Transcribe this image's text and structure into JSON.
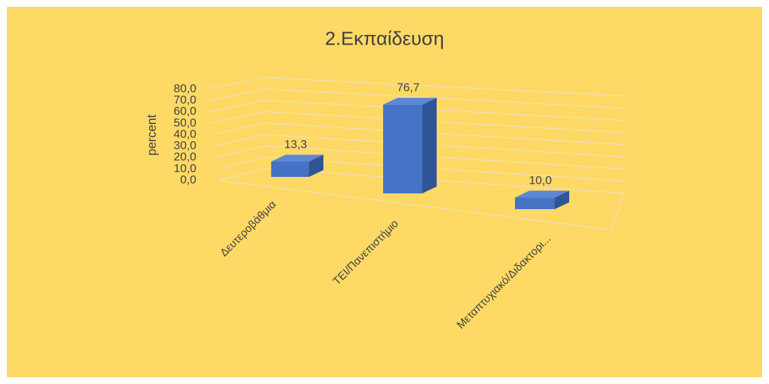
{
  "chart_data": {
    "type": "bar3d",
    "title": "2.Εκπαίδευση",
    "ylabel": "percent",
    "categories": [
      "Δευτεροβάθμια",
      "ΤΕΙ/Πανεπιστήμιο",
      "Μεταπτυχιακό/Διδακτορι..."
    ],
    "values": [
      13.3,
      76.7,
      10.0
    ],
    "value_labels": [
      "13,3",
      "76,7",
      "10,0"
    ],
    "color": "#4472c4",
    "background": "#ffd966",
    "ylim": [
      0,
      80
    ],
    "yticks": [
      {
        "value": 0,
        "label": "0,0"
      },
      {
        "value": 10,
        "label": "10,0"
      },
      {
        "value": 20,
        "label": "20,0"
      },
      {
        "value": 30,
        "label": "30,0"
      },
      {
        "value": 40,
        "label": "40,0"
      },
      {
        "value": 50,
        "label": "50,0"
      },
      {
        "value": 60,
        "label": "60,0"
      },
      {
        "value": 70,
        "label": "70,0"
      },
      {
        "value": 80,
        "label": "80,0"
      }
    ],
    "grid": true
  }
}
